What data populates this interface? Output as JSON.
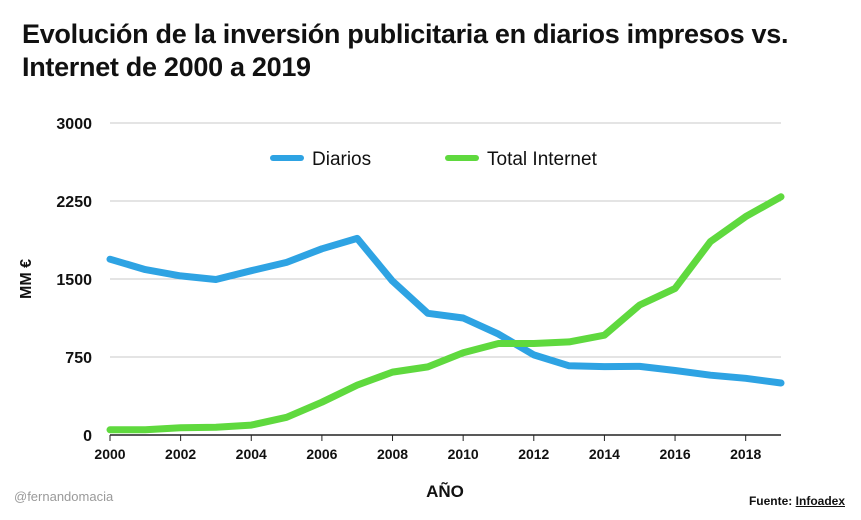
{
  "title": "Evolución de la inversión publicitaria en diarios impresos vs. Internet de 2000 a 2019",
  "watermark": "@fernandomacia",
  "source": {
    "label": "Fuente:",
    "link_text": "Infoadex"
  },
  "colors": {
    "diarios": "#2ea3e3",
    "internet": "#5fd93e",
    "grid": "#c8c8c8"
  },
  "chart_data": {
    "type": "line",
    "xlabel": "AÑO",
    "ylabel": "MM €",
    "xlim": [
      2000,
      2019
    ],
    "ylim": [
      0,
      3000
    ],
    "x_ticks": [
      2000,
      2002,
      2004,
      2006,
      2008,
      2010,
      2012,
      2014,
      2016,
      2018
    ],
    "y_ticks": [
      0,
      750,
      1500,
      2250,
      3000
    ],
    "grid": true,
    "legend_position": "top",
    "x": [
      2000,
      2001,
      2002,
      2003,
      2004,
      2005,
      2006,
      2007,
      2008,
      2009,
      2010,
      2011,
      2012,
      2013,
      2014,
      2015,
      2016,
      2017,
      2018,
      2019
    ],
    "series": [
      {
        "name": "Diarios",
        "values": [
          1690,
          1590,
          1530,
          1495,
          1580,
          1660,
          1790,
          1890,
          1480,
          1170,
          1125,
          970,
          770,
          665,
          658,
          660,
          620,
          575,
          545,
          500
        ]
      },
      {
        "name": "Total Internet",
        "values": [
          50,
          50,
          70,
          75,
          95,
          170,
          315,
          480,
          605,
          655,
          790,
          880,
          880,
          895,
          960,
          1250,
          1410,
          1860,
          2100,
          2290
        ]
      }
    ]
  }
}
